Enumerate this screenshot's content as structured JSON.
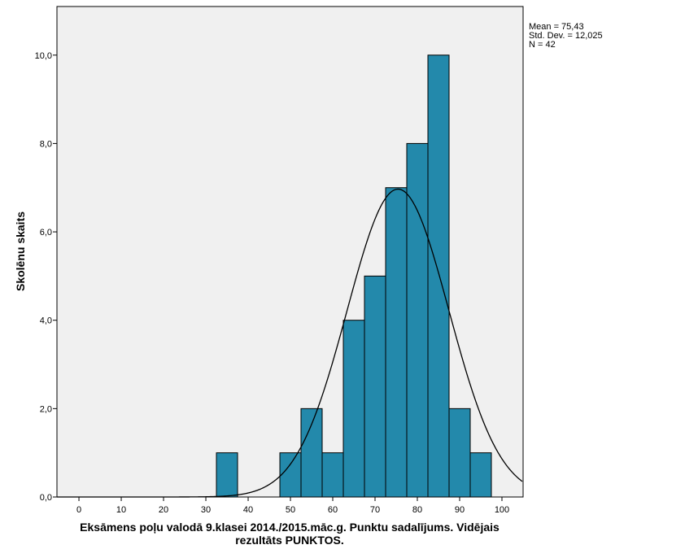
{
  "chart_data": {
    "type": "bar",
    "subtype": "histogram",
    "xlabel_lines": [
      "Eksāmens poļu valodā 9.klasei 2014./2015.māc.g. Punktu sadalījums. Vidējais",
      "rezultāts PUNKTOS."
    ],
    "ylabel": "Skolēnu skaits",
    "xlim": [
      -5.2,
      105
    ],
    "ylim": [
      0,
      11.1
    ],
    "x_ticks": [
      0,
      10,
      20,
      30,
      40,
      50,
      60,
      70,
      80,
      90,
      100
    ],
    "x_tick_labels": [
      "0",
      "10",
      "20",
      "30",
      "40",
      "50",
      "60",
      "70",
      "80",
      "90",
      "100"
    ],
    "y_ticks": [
      0,
      2,
      4,
      6,
      8,
      10
    ],
    "y_tick_labels": [
      "0,0",
      "2,0",
      "4,0",
      "6,0",
      "8,0",
      "10,0"
    ],
    "bin_width": 5,
    "bins": [
      {
        "start": 32.5,
        "end": 37.5,
        "count": 1
      },
      {
        "start": 47.5,
        "end": 52.5,
        "count": 1
      },
      {
        "start": 52.5,
        "end": 57.5,
        "count": 2
      },
      {
        "start": 57.5,
        "end": 62.5,
        "count": 1
      },
      {
        "start": 62.5,
        "end": 67.5,
        "count": 4
      },
      {
        "start": 67.5,
        "end": 72.5,
        "count": 5
      },
      {
        "start": 72.5,
        "end": 77.5,
        "count": 7
      },
      {
        "start": 77.5,
        "end": 82.5,
        "count": 8
      },
      {
        "start": 82.5,
        "end": 87.5,
        "count": 10
      },
      {
        "start": 87.5,
        "end": 92.5,
        "count": 2
      },
      {
        "start": 92.5,
        "end": 97.5,
        "count": 1
      }
    ],
    "normal_curve": {
      "mean": 75.43,
      "std": 12.025,
      "n": 42
    },
    "stats_lines": [
      "Mean = 75,43",
      "Std. Dev. = 12,025",
      "N = 42"
    ],
    "colors": {
      "bar": "#2389ab",
      "plot_bg": "#f0f0f0",
      "curve": "#000000"
    },
    "grid": false
  }
}
